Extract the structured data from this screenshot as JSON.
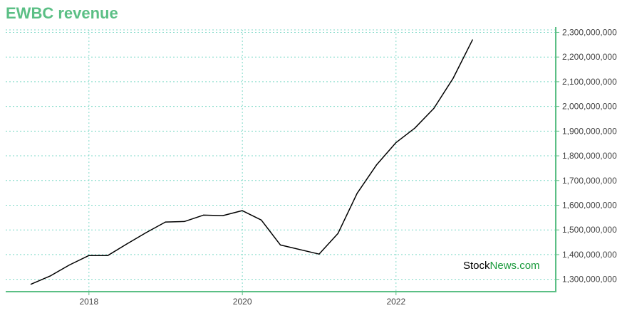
{
  "chart_data": {
    "type": "line",
    "title": "EWBC revenue",
    "xlabel": "",
    "ylabel": "",
    "grid": true,
    "x_ticks": [
      "2018",
      "2020",
      "2022"
    ],
    "y_ticks": [
      1300000000,
      1400000000,
      1500000000,
      1600000000,
      1700000000,
      1800000000,
      1900000000,
      2000000000,
      2100000000,
      2200000000,
      2300000000
    ],
    "y_tick_labels": [
      "1,300,000,000",
      "1,400,000,000",
      "1,500,000,000",
      "1,600,000,000",
      "1,700,000,000",
      "1,800,000,000",
      "1,900,000,000",
      "2,000,000,000",
      "2,100,000,000",
      "2,200,000,000",
      "2,300,000,000"
    ],
    "xlim": [
      "2016-12-01",
      "2024-01-31"
    ],
    "ylim": [
      1250000000,
      2310000000
    ],
    "series": [
      {
        "color": "#000000",
        "points": [
          {
            "x": "2017-03-31",
            "y": 1280000000
          },
          {
            "x": "2017-06-30",
            "y": 1313000000
          },
          {
            "x": "2017-09-30",
            "y": 1358000000
          },
          {
            "x": "2017-12-31",
            "y": 1396000000
          },
          {
            "x": "2018-03-31",
            "y": 1396000000
          },
          {
            "x": "2018-06-30",
            "y": 1443000000
          },
          {
            "x": "2018-09-30",
            "y": 1489000000
          },
          {
            "x": "2018-12-31",
            "y": 1532000000
          },
          {
            "x": "2019-03-31",
            "y": 1534000000
          },
          {
            "x": "2019-06-30",
            "y": 1560000000
          },
          {
            "x": "2019-09-30",
            "y": 1558000000
          },
          {
            "x": "2019-12-31",
            "y": 1578000000
          },
          {
            "x": "2020-03-31",
            "y": 1540000000
          },
          {
            "x": "2020-06-30",
            "y": 1439000000
          },
          {
            "x": "2020-12-31",
            "y": 1402000000
          },
          {
            "x": "2021-03-31",
            "y": 1486000000
          },
          {
            "x": "2021-06-30",
            "y": 1648000000
          },
          {
            "x": "2021-09-30",
            "y": 1763000000
          },
          {
            "x": "2021-12-31",
            "y": 1853000000
          },
          {
            "x": "2022-03-31",
            "y": 1912000000
          },
          {
            "x": "2022-06-30",
            "y": 1992000000
          },
          {
            "x": "2022-09-30",
            "y": 2114000000
          },
          {
            "x": "2022-12-31",
            "y": 2270000000
          }
        ]
      }
    ]
  },
  "watermark": {
    "part1": "Stock",
    "part2": "News.com"
  },
  "colors": {
    "axis": "#5bbf85",
    "grid": "#7fd9c8",
    "line": "#000000"
  }
}
